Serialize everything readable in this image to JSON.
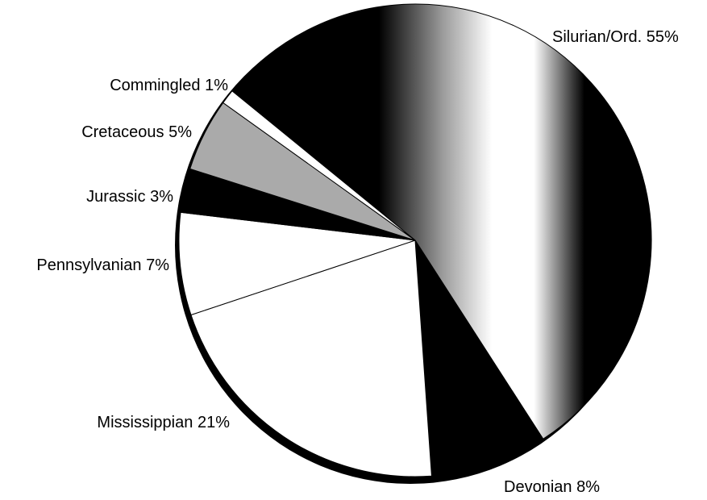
{
  "chart_data": {
    "type": "pie",
    "categories": [
      "Silurian/Ord.",
      "Devonian",
      "Mississippian",
      "Pennsylvanian",
      "Jurassic",
      "Cretaceous",
      "Commingled"
    ],
    "values": [
      55,
      8,
      21,
      7,
      3,
      5,
      1
    ],
    "value_labels": [
      "55%",
      "8%",
      "21%",
      "7%",
      "3%",
      "5%",
      "1%"
    ],
    "colors": [
      "#999999",
      "#000000",
      "#ffffff",
      "#ffffff",
      "#000000",
      "#aaaaaa",
      "#ffffff"
    ]
  }
}
